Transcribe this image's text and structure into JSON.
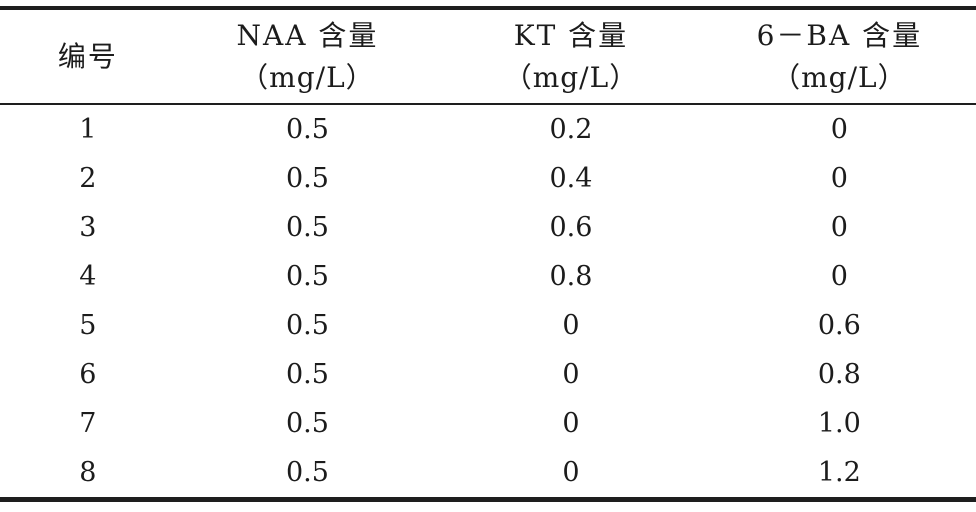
{
  "colors": {
    "background": "#ffffff",
    "rule": "#1e1e1e",
    "text": "#1c1c1c"
  },
  "table": {
    "columns": [
      {
        "title": "编号",
        "subtitle": ""
      },
      {
        "title": "NAA 含量",
        "subtitle": "（mg/L）"
      },
      {
        "title": "KT 含量",
        "subtitle": "（mg/L）"
      },
      {
        "title": "6－BA 含量",
        "subtitle": "（mg/L）"
      }
    ],
    "rows": [
      [
        "1",
        "0.5",
        "0.2",
        "0"
      ],
      [
        "2",
        "0.5",
        "0.4",
        "0"
      ],
      [
        "3",
        "0.5",
        "0.6",
        "0"
      ],
      [
        "4",
        "0.5",
        "0.8",
        "0"
      ],
      [
        "5",
        "0.5",
        "0",
        "0.6"
      ],
      [
        "6",
        "0.5",
        "0",
        "0.8"
      ],
      [
        "7",
        "0.5",
        "0",
        "1.0"
      ],
      [
        "8",
        "0.5",
        "0",
        "1.2"
      ]
    ]
  }
}
